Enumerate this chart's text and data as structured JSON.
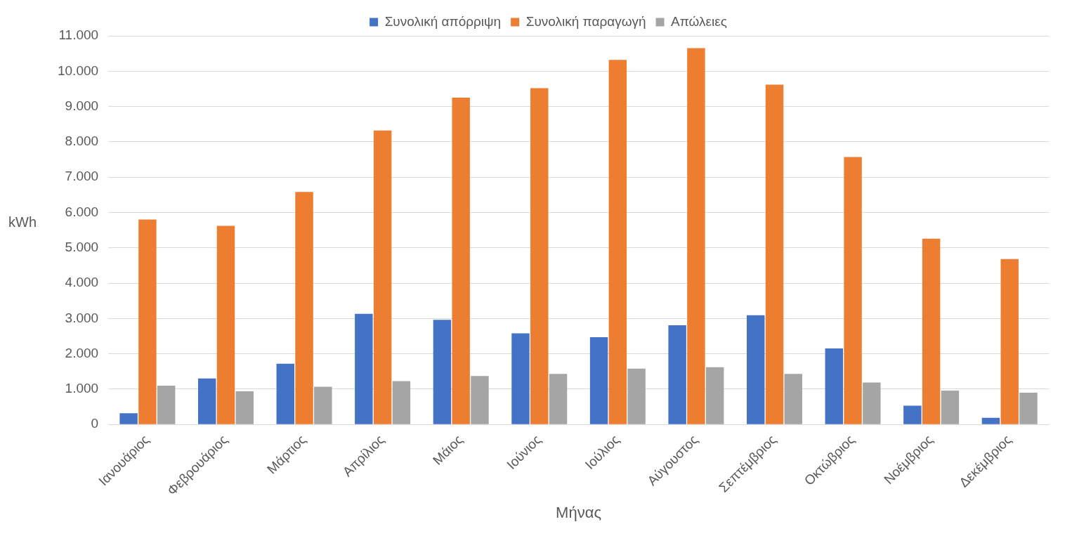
{
  "chart_data": {
    "type": "bar",
    "xlabel": "Μήνας",
    "ylabel": "kWh",
    "categories": [
      "Ιανουάριος",
      "Φεβρουάριος",
      "Μάρτιος",
      "Απρίλιος",
      "Μάιος",
      "Ιούνιος",
      "Ιούλιος",
      "Αύγουστος",
      "Σεπτέμβριος",
      "Οκτώβριος",
      "Νοέμβριος",
      "Δεκέμβριος"
    ],
    "series": [
      {
        "name": "Συνολική απόρριψη",
        "color": "#4472c4",
        "values": [
          320,
          1300,
          1720,
          3130,
          2960,
          2580,
          2470,
          2810,
          3090,
          2150,
          530,
          190
        ]
      },
      {
        "name": "Συνολική παραγωγή",
        "color": "#ed7d31",
        "values": [
          5800,
          5620,
          6580,
          8320,
          9250,
          9520,
          10320,
          10650,
          9620,
          7570,
          5260,
          4680
        ]
      },
      {
        "name": "Απώλειες",
        "color": "#a5a5a5",
        "values": [
          1100,
          940,
          1070,
          1230,
          1370,
          1430,
          1580,
          1620,
          1430,
          1190,
          960,
          900
        ]
      }
    ],
    "ylim": [
      0,
      11000
    ],
    "yticks": [
      0,
      {
        "value": 1000,
        "label": "1.000"
      },
      {
        "value": 2000,
        "label": "2.000"
      },
      {
        "value": 3000,
        "label": "3.000"
      },
      {
        "value": 4000,
        "label": "4.000"
      },
      {
        "value": 5000,
        "label": "5.000"
      },
      {
        "value": 6000,
        "label": "6.000"
      },
      {
        "value": 7000,
        "label": "7.000"
      },
      {
        "value": 8000,
        "label": "8.000"
      },
      {
        "value": 9000,
        "label": "9.000"
      },
      {
        "value": 10000,
        "label": "10.000"
      },
      {
        "value": 11000,
        "label": "11.000"
      }
    ],
    "grid": "y",
    "legend": "top"
  }
}
